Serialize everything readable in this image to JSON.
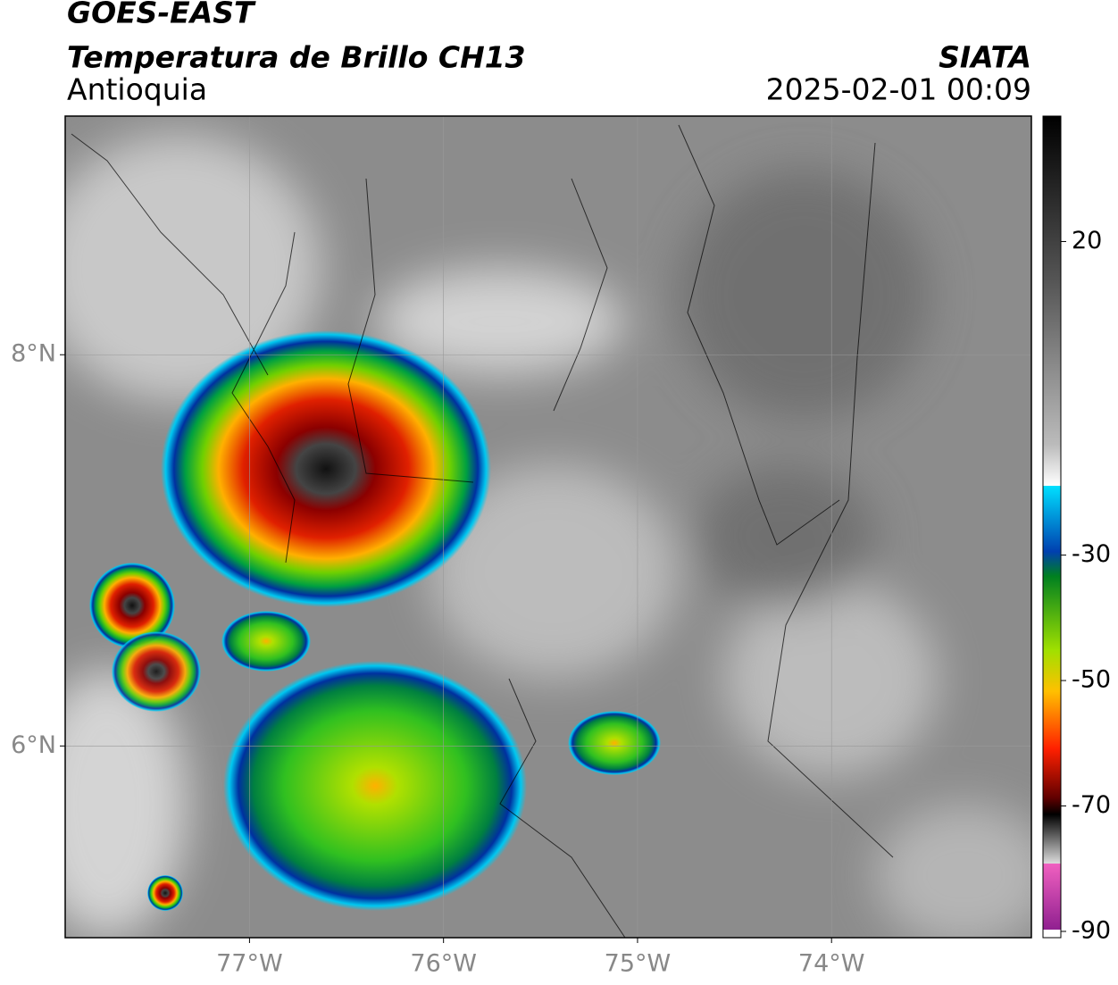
{
  "header": {
    "title": "GOES-EAST",
    "subtitle": "Temperatura de Brillo CH13",
    "region": "Antioquia",
    "agency": "SIATA",
    "datetime": "2025-02-01 00:09"
  },
  "map": {
    "xlim": [
      -77.95,
      -72.97
    ],
    "ylim": [
      5.02,
      9.22
    ],
    "xticks": [
      {
        "value": -77,
        "label": "77°W"
      },
      {
        "value": -76,
        "label": "76°W"
      },
      {
        "value": -75,
        "label": "75°W"
      },
      {
        "value": -74,
        "label": "74°W"
      }
    ],
    "yticks": [
      {
        "value": 8,
        "label": "8°N"
      },
      {
        "value": 6,
        "label": "6°N"
      }
    ],
    "grid": true
  },
  "colorbar": {
    "lim": [
      -91,
      40
    ],
    "ticks": [
      20,
      -30,
      -50,
      -70,
      -90
    ]
  }
}
